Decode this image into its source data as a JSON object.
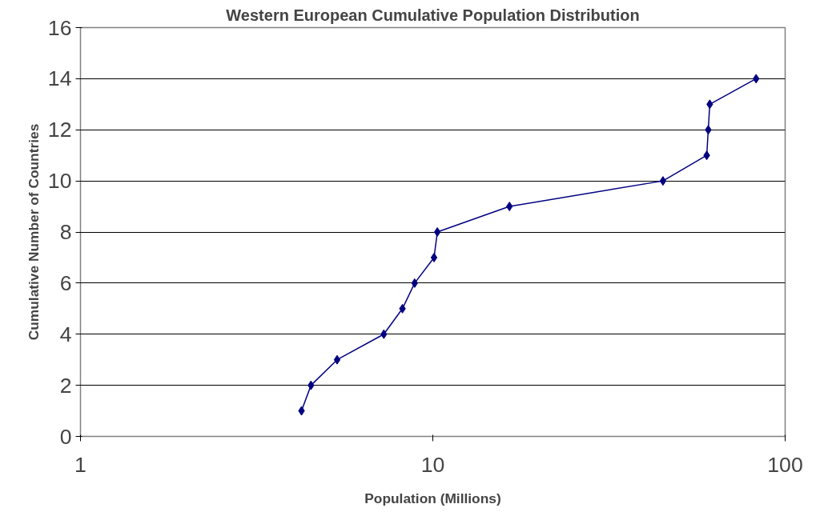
{
  "chart_data": {
    "type": "line",
    "title": "Western European Cumulative Population Distribution",
    "xlabel": "Population (Millions)",
    "ylabel": "Cumulative Number of Countries",
    "log": "x",
    "xlim": [
      1,
      100
    ],
    "xticks": [
      1,
      10,
      100
    ],
    "ylim": [
      0,
      16
    ],
    "yticks": [
      0,
      2,
      4,
      6,
      8,
      10,
      12,
      14,
      16
    ],
    "grid": "y",
    "marker": "diamond",
    "series": [
      {
        "color": "#000080",
        "x": [
          4.24,
          4.51,
          5.35,
          7.26,
          8.2,
          8.88,
          10.08,
          10.3,
          16.5,
          45.0,
          59.9,
          60.5,
          61.1,
          82.7
        ],
        "values": [
          1,
          2,
          3,
          4,
          5,
          6,
          7,
          8,
          9,
          10,
          11,
          12,
          13,
          14
        ]
      }
    ]
  }
}
